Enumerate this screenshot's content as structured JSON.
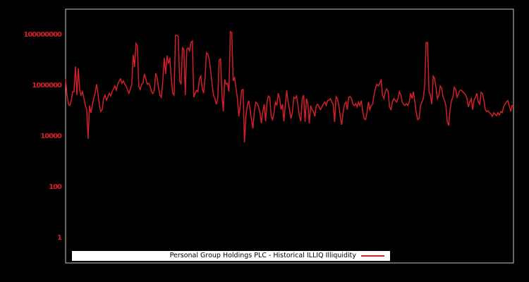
{
  "figure": {
    "background": "#000000",
    "frame_color": "#c8c8c8",
    "accent": "#d21f28"
  },
  "chart_data": {
    "type": "line",
    "title": "Personal Group Holdings PLC - Historical ILLIQ Illiquidity",
    "xlabel": "",
    "ylabel": "",
    "yscale": "log",
    "ylim": [
      0.1,
      1000000000
    ],
    "grid": false,
    "legend_position": "lower-center-inside",
    "yticks": [
      {
        "value": 1,
        "label": "1"
      },
      {
        "value": 100,
        "label": "100"
      },
      {
        "value": 10000,
        "label": "10000"
      },
      {
        "value": 1000000,
        "label": "1000000"
      },
      {
        "value": 100000000,
        "label": "100000000"
      }
    ],
    "legend": {
      "label": "Personal Group Holdings PLC - Historical ILLIQ Illiquidity",
      "background": "#ffffff",
      "text_color": "#000000"
    },
    "series": [
      {
        "name": "Personal Group Holdings PLC - Historical ILLIQ Illiquidity",
        "color": "#d21f28",
        "values": [
          1800000,
          410000,
          180000,
          160000,
          250000,
          560000,
          560000,
          5600000,
          410000,
          4700000,
          640000,
          410000,
          560000,
          300000,
          160000,
          110000,
          7800,
          160000,
          83000,
          160000,
          300000,
          490000,
          1100000,
          470000,
          160000,
          93000,
          110000,
          300000,
          410000,
          260000,
          340000,
          490000,
          380000,
          560000,
          720000,
          930000,
          640000,
          1100000,
          1500000,
          1800000,
          1200000,
          1500000,
          1100000,
          930000,
          640000,
          490000,
          720000,
          1100000,
          16000000,
          5300000,
          44000000,
          36000000,
          880000,
          680000,
          1100000,
          1200000,
          2800000,
          1800000,
          1100000,
          1200000,
          930000,
          560000,
          470000,
          640000,
          3000000,
          2000000,
          780000,
          410000,
          340000,
          1500000,
          12000000,
          2800000,
          15000000,
          7200000,
          12000000,
          2000000,
          490000,
          410000,
          93000000,
          93000000,
          83000000,
          1500000,
          1100000,
          30000000,
          26000000,
          410000,
          26000000,
          30000000,
          23000000,
          49000000,
          56000000,
          340000,
          490000,
          640000,
          560000,
          1800000,
          2300000,
          780000,
          490000,
          2000000,
          19000000,
          17000000,
          10000000,
          3800000,
          1100000,
          410000,
          300000,
          180000,
          300000,
          10000000,
          11000000,
          410000,
          93000,
          1700000,
          1100000,
          1200000,
          560000,
          130000000,
          120000000,
          1500000,
          2000000,
          780000,
          300000,
          60000,
          160000,
          640000,
          680000,
          5600,
          60000,
          160000,
          250000,
          110000,
          44000,
          20000,
          93000,
          220000,
          190000,
          140000,
          83000,
          32000,
          93000,
          180000,
          38000,
          220000,
          380000,
          340000,
          60000,
          44000,
          83000,
          220000,
          160000,
          490000,
          300000,
          110000,
          180000,
          38000,
          160000,
          640000,
          220000,
          110000,
          49000,
          83000,
          340000,
          300000,
          380000,
          160000,
          60000,
          38000,
          300000,
          410000,
          36000,
          300000,
          180000,
          32000,
          160000,
          110000,
          93000,
          60000,
          160000,
          180000,
          140000,
          110000,
          140000,
          180000,
          220000,
          160000,
          250000,
          260000,
          300000,
          220000,
          180000,
          36000,
          360000,
          300000,
          160000,
          60000,
          28000,
          83000,
          180000,
          220000,
          110000,
          340000,
          360000,
          300000,
          180000,
          160000,
          190000,
          140000,
          220000,
          160000,
          250000,
          93000,
          49000,
          44000,
          83000,
          220000,
          110000,
          160000,
          180000,
          410000,
          780000,
          1100000,
          930000,
          1200000,
          1700000,
          410000,
          300000,
          560000,
          720000,
          560000,
          140000,
          110000,
          220000,
          300000,
          260000,
          220000,
          300000,
          560000,
          410000,
          220000,
          180000,
          160000,
          190000,
          160000,
          220000,
          490000,
          300000,
          560000,
          220000,
          83000,
          44000,
          49000,
          160000,
          220000,
          300000,
          1100000,
          49000000,
          49000000,
          560000,
          410000,
          180000,
          2300000,
          1800000,
          780000,
          300000,
          410000,
          930000,
          780000,
          340000,
          260000,
          160000,
          38000,
          26000,
          110000,
          250000,
          340000,
          830000,
          680000,
          340000,
          490000,
          640000,
          640000,
          560000,
          490000,
          410000,
          300000,
          140000,
          220000,
          300000,
          110000,
          260000,
          340000,
          490000,
          220000,
          180000,
          530000,
          470000,
          260000,
          110000,
          93000,
          100000,
          83000,
          72000,
          60000,
          83000,
          72000,
          64000,
          83000,
          68000,
          93000,
          83000,
          140000,
          180000,
          220000,
          250000,
          160000,
          93000,
          160000,
          140000
        ]
      }
    ]
  }
}
